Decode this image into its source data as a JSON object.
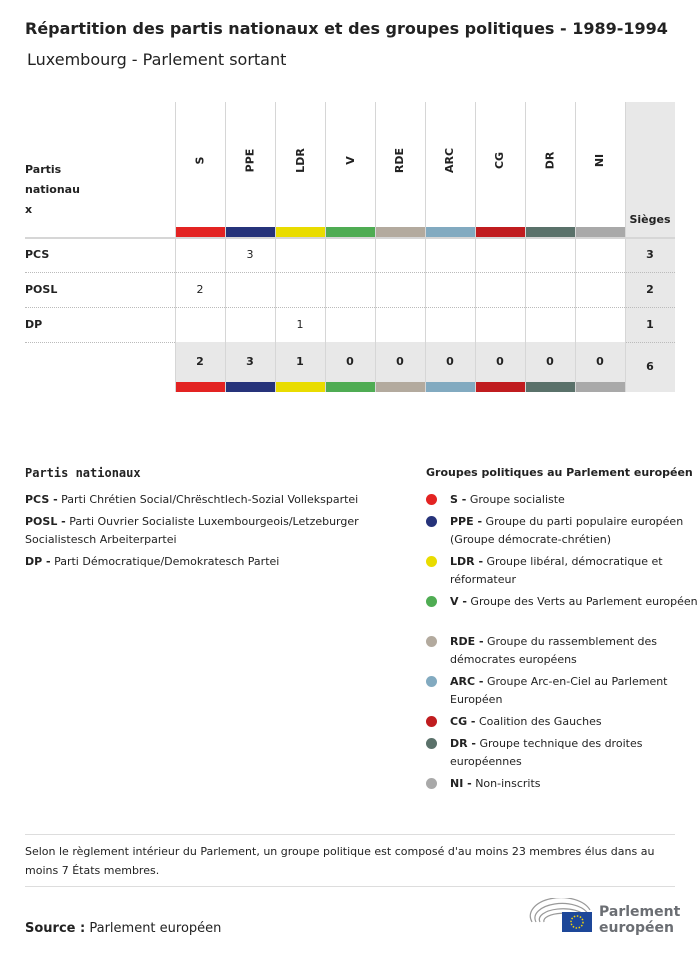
{
  "title": "Répartition des partis nationaux et des groupes politiques - 1989-1994",
  "subtitle": "Luxembourg - Parlement sortant",
  "table": {
    "row_header": "Partis nationau x",
    "seats_header": "Sièges",
    "groups": [
      {
        "code": "S",
        "color": "#e32322"
      },
      {
        "code": "PPE",
        "color": "#26337a"
      },
      {
        "code": "LDR",
        "color": "#e9dc00"
      },
      {
        "code": "V",
        "color": "#4fac53"
      },
      {
        "code": "RDE",
        "color": "#b3aa9e"
      },
      {
        "code": "ARC",
        "color": "#82aac0"
      },
      {
        "code": "CG",
        "color": "#c01c1f"
      },
      {
        "code": "DR",
        "color": "#5a716a"
      },
      {
        "code": "NI",
        "color": "#a9a9a9"
      }
    ],
    "rows": [
      {
        "party": "PCS",
        "values": [
          "",
          "3",
          "",
          "",
          "",
          "",
          "",
          "",
          ""
        ],
        "total": "3"
      },
      {
        "party": "POSL",
        "values": [
          "2",
          "",
          "",
          "",
          "",
          "",
          "",
          "",
          ""
        ],
        "total": "2"
      },
      {
        "party": "DP",
        "values": [
          "",
          "",
          "1",
          "",
          "",
          "",
          "",
          "",
          ""
        ],
        "total": "1"
      }
    ],
    "totals": [
      "2",
      "3",
      "1",
      "0",
      "0",
      "0",
      "0",
      "0",
      "0"
    ],
    "grand_total": "6"
  },
  "legend_parties": {
    "title": "Partis nationaux",
    "items": [
      {
        "code": "PCS -",
        "name": "Parti Chrétien Social/Chrëschtlech-Sozial Vollekspartei"
      },
      {
        "code": "POSL -",
        "name": "Parti Ouvrier Socialiste Luxembourgeois/Letzeburger Socialistesch Arbeiterpartei"
      },
      {
        "code": "DP -",
        "name": "Parti Démocratique/Demokratesch Partei"
      }
    ]
  },
  "legend_groups": {
    "title": "Groupes politiques au Parlement européen",
    "items": [
      {
        "code": "S -",
        "name": "Groupe socialiste",
        "color": "#e32322"
      },
      {
        "code": "PPE -",
        "name": "Groupe du parti populaire européen (Groupe démocrate-chrétien)",
        "color": "#26337a"
      },
      {
        "code": "LDR -",
        "name": "Groupe libéral, démocratique et réformateur",
        "color": "#e9dc00"
      },
      {
        "code": "V -",
        "name": "Groupe des Verts au Parlement européen",
        "color": "#4fac53"
      },
      {
        "code": "RDE -",
        "name": "Groupe du rassemblement des démocrates européens",
        "color": "#b3aa9e"
      },
      {
        "code": "ARC -",
        "name": "Groupe Arc-en-Ciel au Parlement Européen",
        "color": "#82aac0"
      },
      {
        "code": "CG -",
        "name": "Coalition des Gauches",
        "color": "#c01c1f"
      },
      {
        "code": "DR -",
        "name": "Groupe technique des droites européennes",
        "color": "#5a716a"
      },
      {
        "code": "NI -",
        "name": "Non-inscrits",
        "color": "#a9a9a9"
      }
    ]
  },
  "note": "Selon le règlement intérieur du Parlement, un groupe politique est composé d'au moins 23 membres élus dans au moins 7 États membres.",
  "source_label": "Source :",
  "source": "Parlement européen",
  "logo": {
    "line1": "Parlement",
    "line2": "européen"
  }
}
